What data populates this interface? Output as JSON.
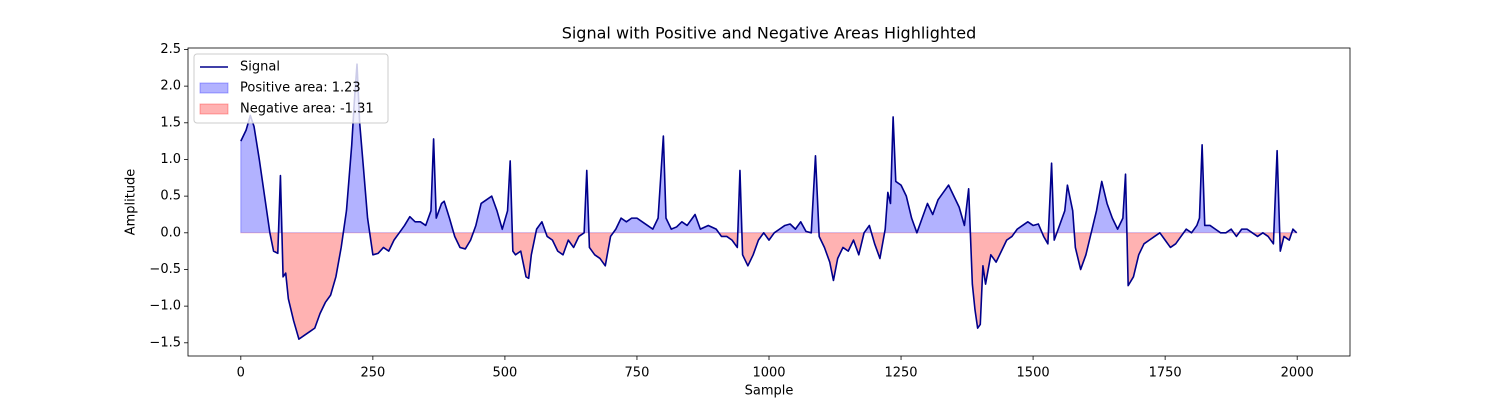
{
  "chart_data": {
    "type": "line",
    "title": "Signal with Positive and Negative Areas Highlighted",
    "xlabel": "Sample",
    "ylabel": "Amplitude",
    "xlim": [
      -100,
      2100
    ],
    "xticks": [
      0,
      250,
      500,
      750,
      1000,
      1250,
      1500,
      1750,
      2000
    ],
    "ylim": [
      -1.68,
      2.52
    ],
    "yticks": [
      {
        "value": -1.5,
        "label": "−1.5"
      },
      {
        "value": -1.0,
        "label": "−1.0"
      },
      {
        "value": -0.5,
        "label": "−0.5"
      },
      {
        "value": 0,
        "label": "0.0"
      },
      0.5,
      {
        "value": 1.0,
        "label": "1.0"
      },
      1.5,
      {
        "value": 2.0,
        "label": "2.0"
      },
      2.5
    ],
    "legend": "upper left",
    "x": [
      0,
      10,
      18,
      25,
      35,
      45,
      55,
      62,
      70,
      75,
      80,
      85,
      90,
      100,
      110,
      120,
      130,
      140,
      150,
      160,
      170,
      180,
      190,
      200,
      210,
      215,
      220,
      225,
      232,
      240,
      250,
      260,
      270,
      280,
      290,
      300,
      310,
      320,
      330,
      340,
      350,
      360,
      365,
      370,
      380,
      385,
      395,
      405,
      415,
      425,
      435,
      445,
      455,
      465,
      475,
      485,
      495,
      505,
      510,
      515,
      520,
      530,
      540,
      545,
      550,
      560,
      570,
      580,
      590,
      600,
      610,
      620,
      630,
      640,
      650,
      655,
      660,
      670,
      680,
      690,
      700,
      710,
      720,
      730,
      740,
      750,
      760,
      770,
      780,
      790,
      800,
      805,
      815,
      825,
      835,
      845,
      855,
      860,
      870,
      885,
      900,
      910,
      920,
      930,
      940,
      945,
      950,
      960,
      970,
      980,
      990,
      1000,
      1010,
      1020,
      1030,
      1040,
      1050,
      1060,
      1070,
      1080,
      1088,
      1095,
      1105,
      1115,
      1122,
      1130,
      1140,
      1150,
      1160,
      1170,
      1180,
      1190,
      1200,
      1210,
      1220,
      1225,
      1230,
      1235,
      1240,
      1250,
      1260,
      1270,
      1280,
      1290,
      1300,
      1310,
      1320,
      1330,
      1340,
      1350,
      1360,
      1370,
      1378,
      1385,
      1390,
      1395,
      1400,
      1405,
      1410,
      1420,
      1430,
      1440,
      1450,
      1460,
      1470,
      1480,
      1490,
      1500,
      1510,
      1520,
      1528,
      1535,
      1540,
      1550,
      1560,
      1565,
      1575,
      1580,
      1590,
      1600,
      1610,
      1620,
      1630,
      1640,
      1650,
      1660,
      1670,
      1675,
      1680,
      1690,
      1700,
      1710,
      1720,
      1730,
      1740,
      1750,
      1760,
      1770,
      1780,
      1790,
      1800,
      1810,
      1815,
      1820,
      1825,
      1835,
      1845,
      1855,
      1865,
      1875,
      1885,
      1895,
      1905,
      1915,
      1925,
      1935,
      1945,
      1955,
      1962,
      1968,
      1975,
      1985,
      1992,
      1999
    ],
    "series": [
      {
        "name": "Signal",
        "color": "#00008b",
        "values": [
          1.25,
          1.4,
          1.6,
          1.45,
          1.0,
          0.5,
          0.0,
          -0.25,
          -0.28,
          0.78,
          -0.6,
          -0.55,
          -0.9,
          -1.2,
          -1.45,
          -1.4,
          -1.35,
          -1.3,
          -1.1,
          -0.95,
          -0.85,
          -0.6,
          -0.2,
          0.3,
          1.2,
          1.8,
          2.3,
          1.5,
          0.9,
          0.2,
          -0.3,
          -0.28,
          -0.2,
          -0.25,
          -0.1,
          0.0,
          0.1,
          0.22,
          0.15,
          0.15,
          0.1,
          0.3,
          1.28,
          0.2,
          0.4,
          0.43,
          0.2,
          -0.05,
          -0.2,
          -0.22,
          -0.1,
          0.1,
          0.4,
          0.45,
          0.5,
          0.3,
          0.05,
          0.3,
          0.98,
          -0.25,
          -0.3,
          -0.25,
          -0.6,
          -0.62,
          -0.3,
          0.05,
          0.15,
          -0.05,
          -0.1,
          -0.25,
          -0.3,
          -0.1,
          -0.2,
          -0.05,
          0.0,
          0.85,
          -0.2,
          -0.3,
          -0.35,
          -0.45,
          -0.05,
          0.05,
          0.2,
          0.15,
          0.2,
          0.2,
          0.15,
          0.1,
          0.05,
          0.2,
          1.32,
          0.2,
          0.05,
          0.08,
          0.15,
          0.1,
          0.2,
          0.25,
          0.05,
          0.1,
          0.05,
          -0.05,
          -0.05,
          -0.1,
          -0.2,
          0.85,
          -0.3,
          -0.45,
          -0.3,
          -0.1,
          0.0,
          -0.1,
          0.0,
          0.05,
          0.1,
          0.12,
          0.05,
          0.15,
          0.02,
          0.0,
          1.05,
          -0.05,
          -0.2,
          -0.4,
          -0.65,
          -0.35,
          -0.2,
          -0.25,
          -0.1,
          -0.3,
          0.0,
          0.1,
          -0.15,
          -0.35,
          0.05,
          0.55,
          0.4,
          1.58,
          0.7,
          0.65,
          0.5,
          0.2,
          0.0,
          0.2,
          0.4,
          0.25,
          0.45,
          0.55,
          0.65,
          0.5,
          0.35,
          0.1,
          0.6,
          -0.7,
          -1.05,
          -1.3,
          -1.25,
          -0.45,
          -0.7,
          -0.3,
          -0.4,
          -0.25,
          -0.1,
          -0.05,
          0.05,
          0.1,
          0.15,
          0.1,
          0.12,
          -0.05,
          -0.15,
          0.95,
          -0.1,
          0.1,
          0.3,
          0.65,
          0.3,
          -0.2,
          -0.5,
          -0.3,
          0.0,
          0.3,
          0.7,
          0.4,
          0.2,
          0.05,
          0.2,
          0.8,
          -0.72,
          -0.6,
          -0.3,
          -0.15,
          -0.1,
          -0.05,
          0.0,
          -0.1,
          -0.2,
          -0.15,
          -0.05,
          0.05,
          0.0,
          0.1,
          0.2,
          1.2,
          0.1,
          0.1,
          0.05,
          0.0,
          0.0,
          0.05,
          -0.05,
          0.05,
          0.05,
          0.0,
          -0.05,
          0.0,
          -0.05,
          -0.15,
          1.12,
          -0.25,
          -0.05,
          -0.1,
          0.05,
          0.0
        ]
      }
    ],
    "fills": [
      {
        "name": "Positive area: 1.23",
        "color": "#0000ff",
        "side": "positive"
      },
      {
        "name": "Negative area: -1.31",
        "color": "#ff0000",
        "side": "negative"
      }
    ]
  }
}
